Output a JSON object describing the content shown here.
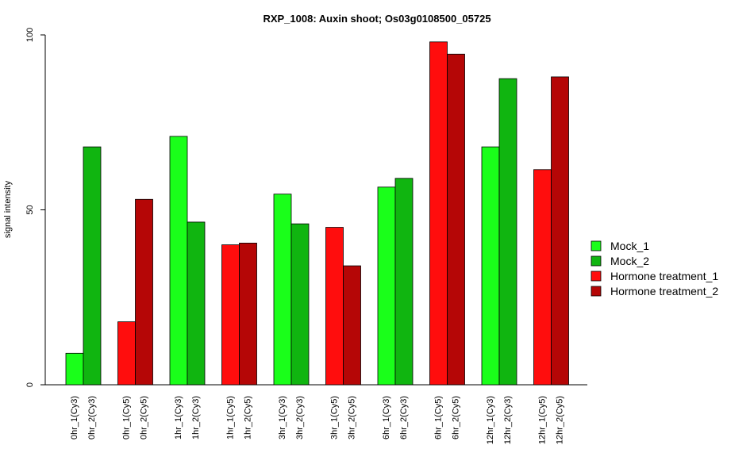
{
  "chart_data": {
    "type": "bar",
    "title": "RXP_1008: Auxin shoot; Os03g0108500_05725",
    "ylabel": "signal intensity",
    "xlabel": "",
    "ylim": [
      0,
      100
    ],
    "yticks": [
      0,
      50,
      100
    ],
    "grid": false,
    "legend_position": "right",
    "categories": [
      "0hr_1(Cy3)",
      "0hr_2(Cy3)",
      "0hr_1(Cy5)",
      "0hr_2(Cy5)",
      "1hr_1(Cy3)",
      "1hr_2(Cy3)",
      "1hr_1(Cy5)",
      "1hr_2(Cy5)",
      "3hr_1(Cy3)",
      "3hr_2(Cy3)",
      "3hr_1(Cy5)",
      "3hr_2(Cy5)",
      "6hr_1(Cy3)",
      "6hr_2(Cy3)",
      "6hr_1(Cy5)",
      "6hr_2(Cy5)",
      "12hr_1(Cy3)",
      "12hr_2(Cy3)",
      "12hr_1(Cy5)",
      "12hr_2(Cy5)"
    ],
    "values": [
      9,
      68,
      18,
      53,
      71,
      46.5,
      40,
      40.5,
      54.5,
      46,
      45,
      34,
      56.5,
      59,
      98,
      94.5,
      68,
      87.5,
      61.5,
      88
    ],
    "bar_series": [
      0,
      1,
      2,
      3,
      0,
      1,
      2,
      3,
      0,
      1,
      2,
      3,
      0,
      1,
      2,
      3,
      0,
      1,
      2,
      3
    ],
    "series": [
      {
        "name": "Mock_1",
        "color": "#1aff1a"
      },
      {
        "name": "Mock_2",
        "color": "#10b510"
      },
      {
        "name": "Hormone treatment_1",
        "color": "#ff0d0d"
      },
      {
        "name": "Hormone treatment_2",
        "color": "#b50606"
      }
    ]
  }
}
